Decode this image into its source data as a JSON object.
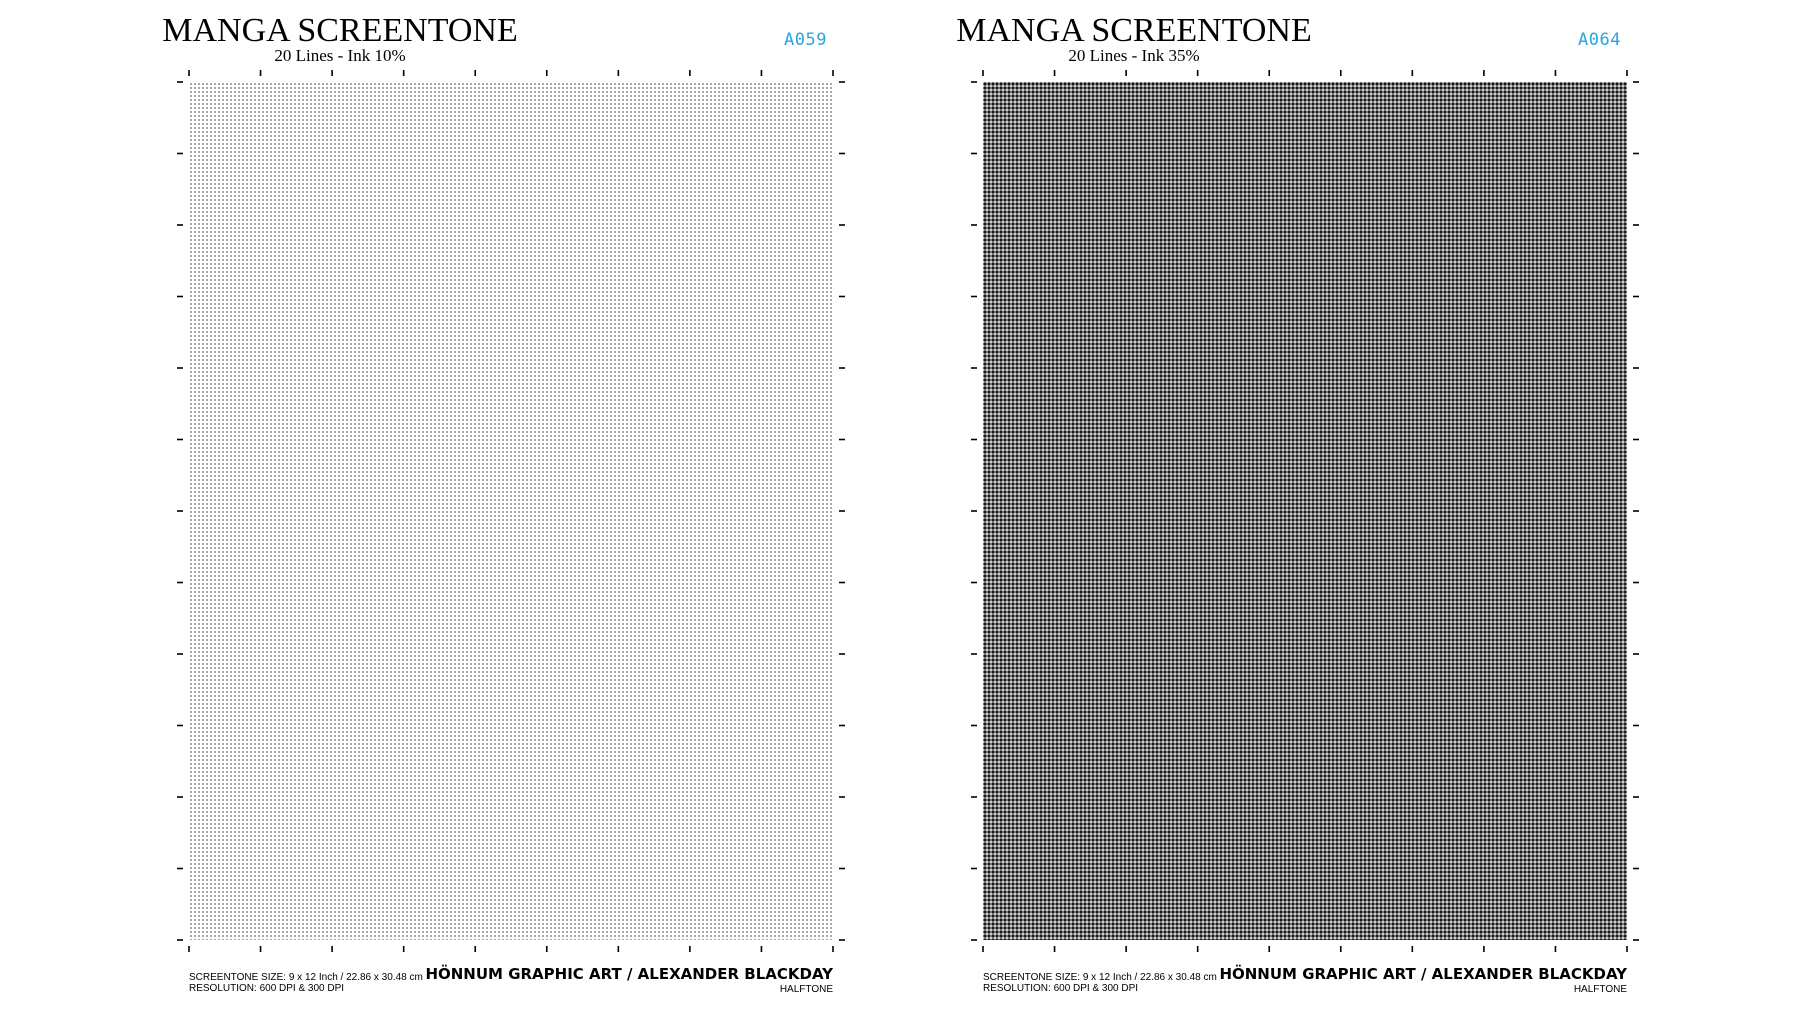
{
  "sheets": [
    {
      "title": "MANGA SCREENTONE",
      "subtitle": "20 Lines - Ink 10%",
      "code": "A059",
      "ink_percent": 10,
      "size_line": "SCREENTONE SIZE: 9 x 12 Inch / 22.86 x 30.48 cm",
      "resolution_line": "RESOLUTION: 600 DPI & 300 DPI",
      "brand": "HÖNNUM GRAPHIC ART / ALEXANDER BLACKDAY",
      "category": "HALFTONE"
    },
    {
      "title": "MANGA SCREENTONE",
      "subtitle": "20 Lines - Ink 35%",
      "code": "A064",
      "ink_percent": 35,
      "size_line": "SCREENTONE SIZE: 9 x 12 Inch / 22.86 x 30.48 cm",
      "resolution_line": "RESOLUTION: 600 DPI & 300 DPI",
      "brand": "HÖNNUM GRAPHIC ART / ALEXANDER BLACKDAY",
      "category": "HALFTONE"
    }
  ],
  "colors": {
    "code": "#2aa4dd",
    "text": "#000000"
  }
}
